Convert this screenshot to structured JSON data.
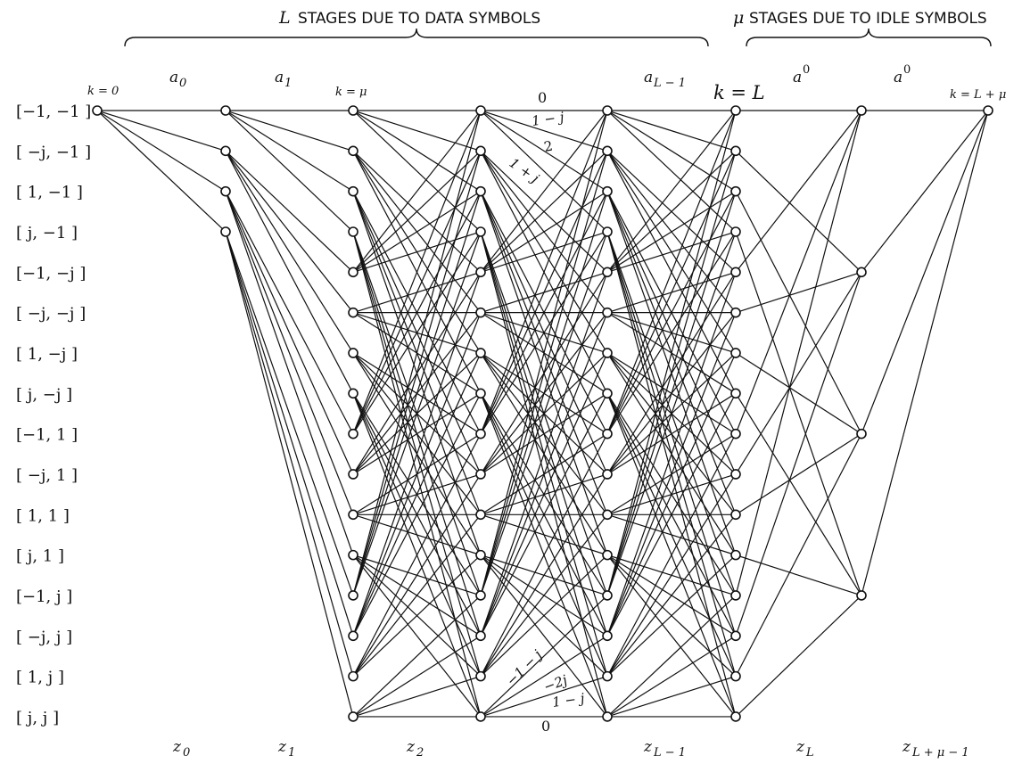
{
  "headings": {
    "data_stages_symbol": "L",
    "data_stages_text": "STAGES DUE TO DATA SYMBOLS",
    "idle_stages_symbol": "μ",
    "idle_stages_text": "STAGES DUE TO IDLE SYMBOLS"
  },
  "states": [
    "[−1, −1 ]",
    "[ −j, −1 ]",
    "[  1, −1 ]",
    "[   j, −1 ]",
    "[−1, −j ]",
    "[ −j, −j ]",
    "[  1, −j ]",
    "[   j, −j ]",
    "[−1,  1 ]",
    "[ −j,  1 ]",
    "[  1,  1 ]",
    "[   j,  1 ]",
    "[−1,  j ]",
    "[ −j,  j ]",
    "[  1,  j ]",
    "[   j,  j ]"
  ],
  "stage_markers": {
    "k0": "k = 0",
    "kmu": "k = μ",
    "kL": "k = L",
    "kLmu": "k = L + μ"
  },
  "top_inputs": {
    "a0": "a",
    "a0_sub": "0",
    "a1": "a",
    "a1_sub": "1",
    "aL1": "a",
    "aL1_sub": "L − 1",
    "idle1": "a",
    "idle1_sup": "0",
    "idle2": "a",
    "idle2_sup": "0"
  },
  "bottom_outputs": {
    "z0": "z",
    "z0_sub": "0",
    "z1": "z",
    "z1_sub": "1",
    "z2": "z",
    "z2_sub": "2",
    "zL1": "z",
    "zL1_sub": "L − 1",
    "zL": "z",
    "zL_sub": "L",
    "zLmu1": "z",
    "zLmu1_sub": "L + μ − 1"
  },
  "branch_labels_top": [
    "0",
    "1 − j",
    "2",
    "1 + j"
  ],
  "branch_labels_bottom": [
    "−1 − j",
    "−2j",
    "1 − j",
    "0"
  ]
}
